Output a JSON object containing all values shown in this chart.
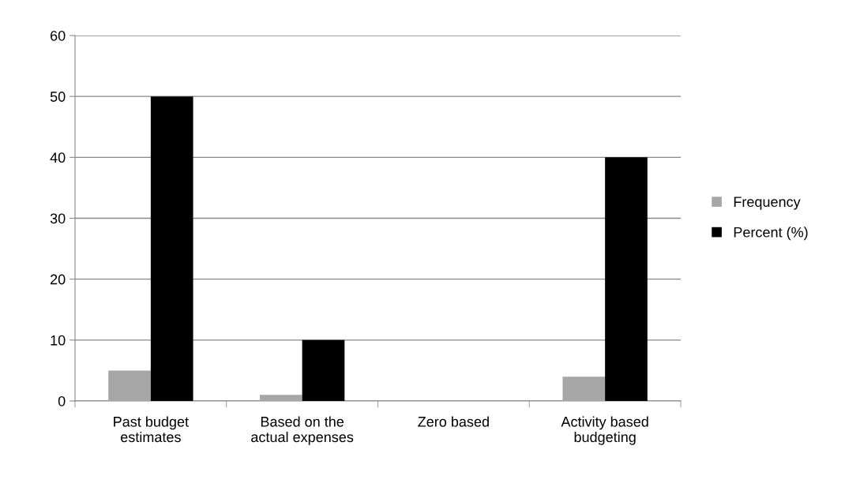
{
  "chart_data": {
    "type": "bar",
    "categories": [
      "Past budget\nestimates",
      "Based on the\nactual expenses",
      "Zero based",
      "Activity based\nbudgeting"
    ],
    "series": [
      {
        "name": "Frequency",
        "color": "#a6a6a6",
        "values": [
          5,
          1,
          0,
          4
        ]
      },
      {
        "name": "Percent (%)",
        "color": "#000000",
        "values": [
          50,
          10,
          0,
          40
        ]
      }
    ],
    "ylim": [
      0,
      60
    ],
    "yticks": [
      0,
      10,
      20,
      30,
      40,
      50,
      60
    ],
    "grid": "y",
    "legend": "right"
  }
}
